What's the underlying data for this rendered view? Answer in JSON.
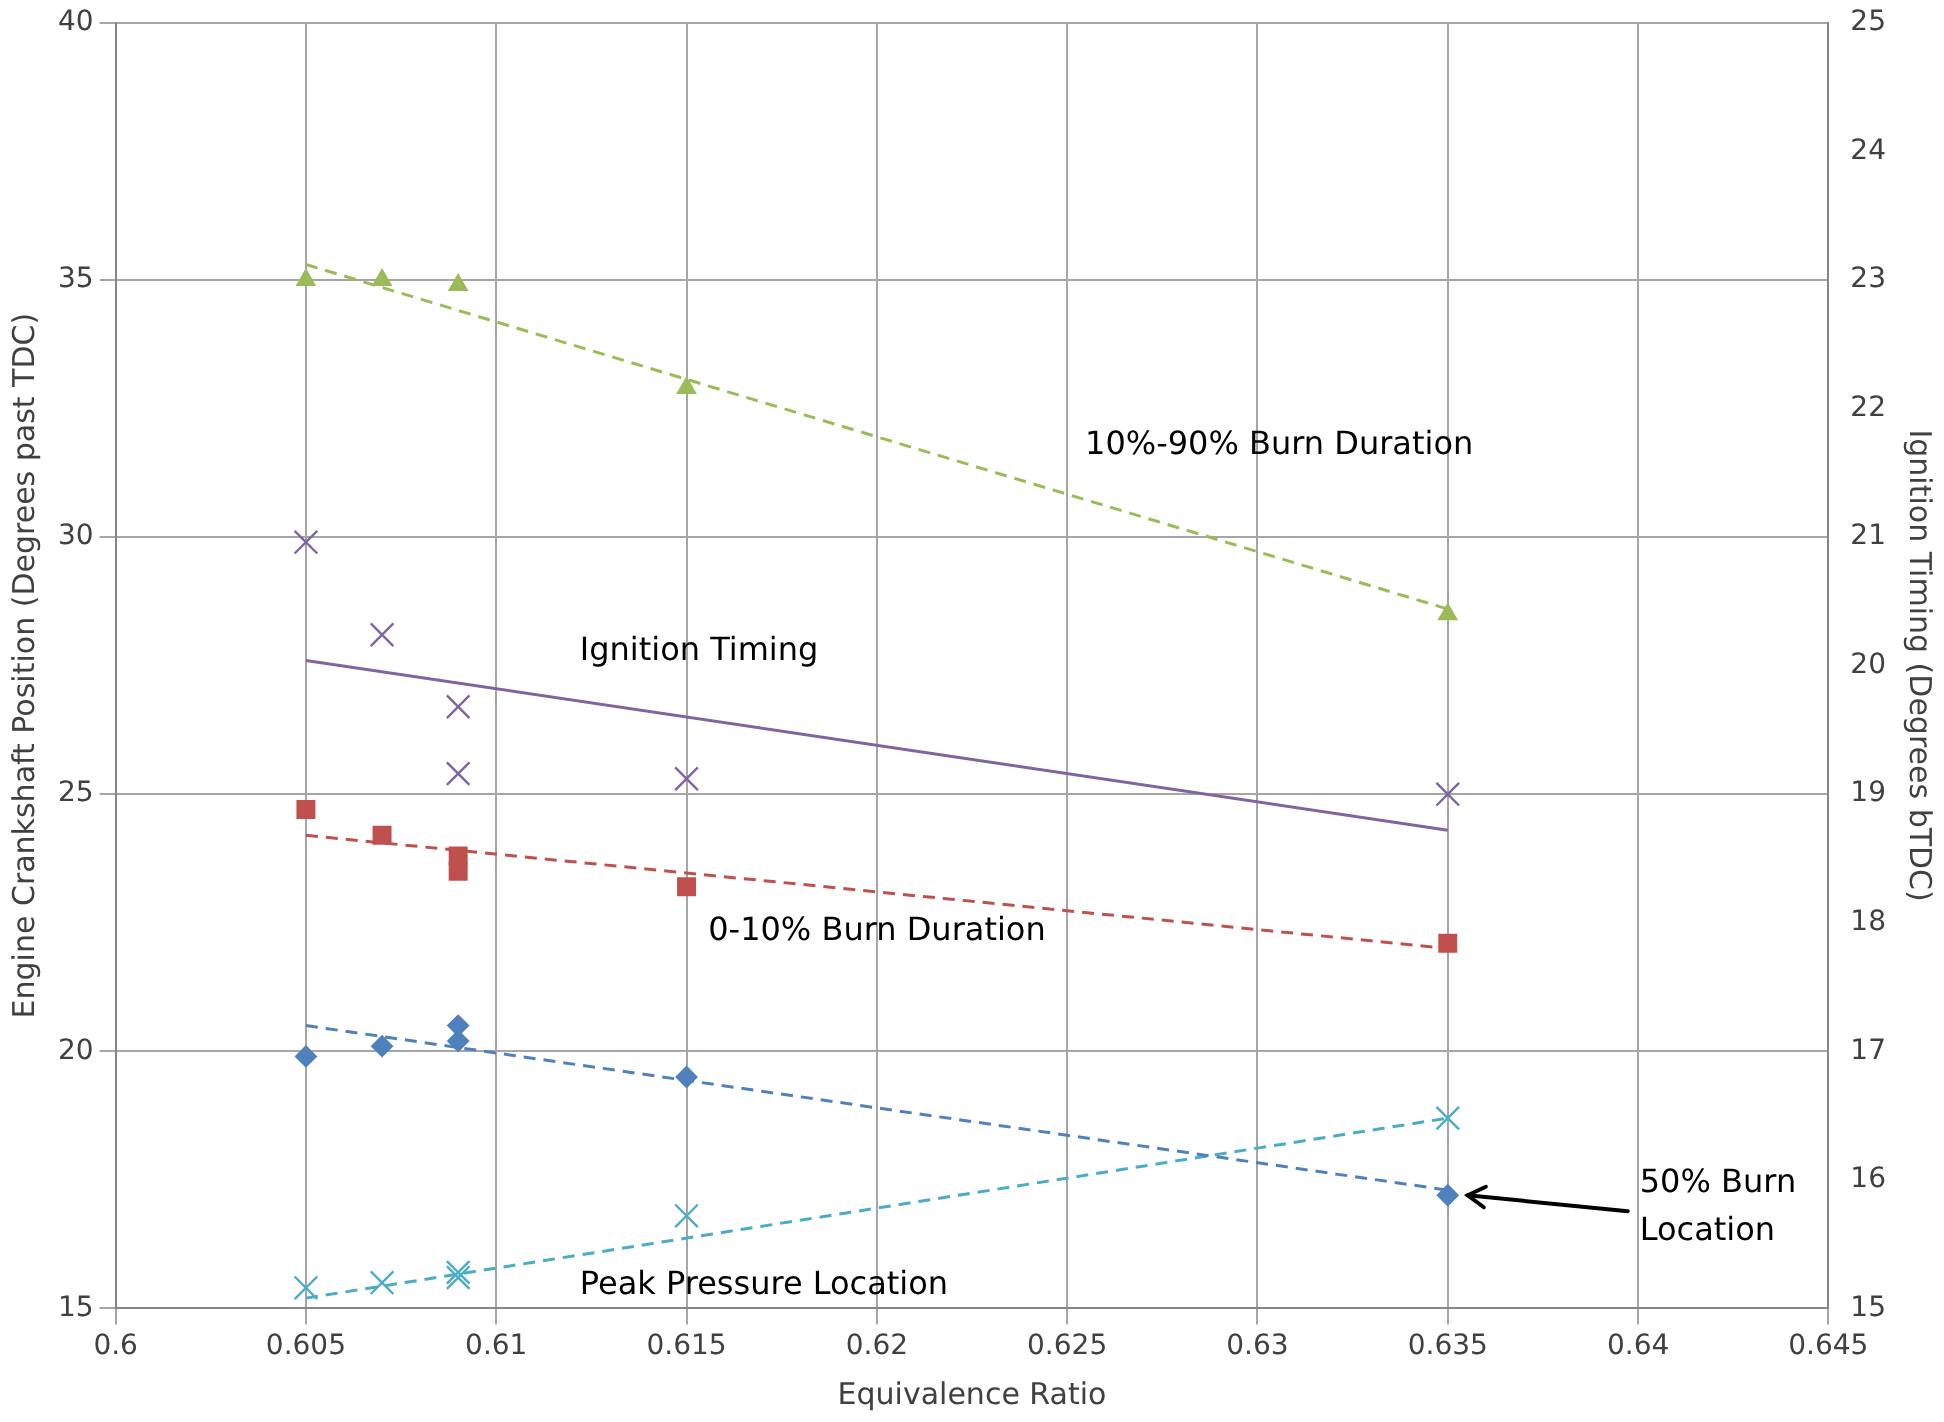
{
  "chart_data": {
    "type": "scatter",
    "xlabel": "Equivalence Ratio",
    "ylabel": "Engine Crankshaft Position (Degrees past TDC)",
    "y2label": "Ignition Timing (Degrees bTDC)",
    "xlim": [
      0.6,
      0.645
    ],
    "xticks": [
      0.6,
      0.605,
      0.61,
      0.615,
      0.62,
      0.625,
      0.63,
      0.635,
      0.64,
      0.645
    ],
    "ylim": [
      15,
      40
    ],
    "yticks": [
      15,
      20,
      25,
      30,
      35,
      40
    ],
    "y2lim": [
      15,
      25
    ],
    "y2ticks": [
      15,
      16,
      17,
      18,
      19,
      20,
      21,
      22,
      23,
      24,
      25
    ],
    "grid": true,
    "legend": false,
    "series": [
      {
        "type": "scatter",
        "color": "#9bbb59",
        "marker": "triangle",
        "x": [
          0.605,
          0.607,
          0.609,
          0.615,
          0.635
        ],
        "values": [
          35,
          35,
          34.9,
          32.9,
          28.5
        ]
      },
      {
        "type": "line",
        "name": "10%-90% Burn Duration",
        "color": "#9bbb59",
        "marker": "none",
        "line_style": "dashed",
        "x": [
          0.605,
          0.635
        ],
        "values": [
          35.3,
          28.6
        ]
      },
      {
        "type": "scatter",
        "color": "#8064a2",
        "marker": "cross",
        "axis": "y2",
        "x": [
          0.605,
          0.607,
          0.609,
          0.609,
          0.615,
          0.635
        ],
        "values": [
          20.96,
          20.24,
          19.68,
          19.16,
          19.12,
          19
        ]
      },
      {
        "type": "line",
        "name": "Ignition Timing",
        "color": "#8064a2",
        "marker": "none",
        "line_style": "solid",
        "axis": "y2",
        "x": [
          0.605,
          0.635
        ],
        "values": [
          20.04,
          18.72
        ]
      },
      {
        "type": "scatter",
        "color": "#c0504d",
        "marker": "square",
        "x": [
          0.605,
          0.607,
          0.609,
          0.609,
          0.615,
          0.635
        ],
        "values": [
          24.7,
          24.2,
          23.8,
          23.5,
          23.2,
          22.1
        ]
      },
      {
        "type": "line",
        "name": "0-10% Burn Duration",
        "color": "#c0504d",
        "marker": "none",
        "line_style": "dashed",
        "x": [
          0.605,
          0.635
        ],
        "values": [
          24.2,
          22
        ]
      },
      {
        "type": "scatter",
        "name": "50% Burn Location",
        "color": "#4f81bd",
        "marker": "diamond",
        "x": [
          0.605,
          0.607,
          0.609,
          0.609,
          0.615,
          0.635
        ],
        "values": [
          19.9,
          20.1,
          20.5,
          20.2,
          19.5,
          17.2
        ]
      },
      {
        "type": "line",
        "color": "#4f81bd",
        "marker": "none",
        "line_style": "dashed",
        "x": [
          0.605,
          0.635
        ],
        "values": [
          20.5,
          17.3
        ]
      },
      {
        "type": "scatter",
        "color": "#4bacc6",
        "marker": "cross",
        "x": [
          0.605,
          0.607,
          0.609,
          0.609,
          0.615,
          0.635
        ],
        "values": [
          15.4,
          15.5,
          15.6,
          15.7,
          16.8,
          18.7
        ]
      },
      {
        "type": "line",
        "name": "Peak Pressure Location",
        "color": "#4bacc6",
        "marker": "none",
        "line_style": "dashed",
        "x": [
          0.605,
          0.635
        ],
        "values": [
          15.2,
          18.7
        ]
      }
    ]
  }
}
